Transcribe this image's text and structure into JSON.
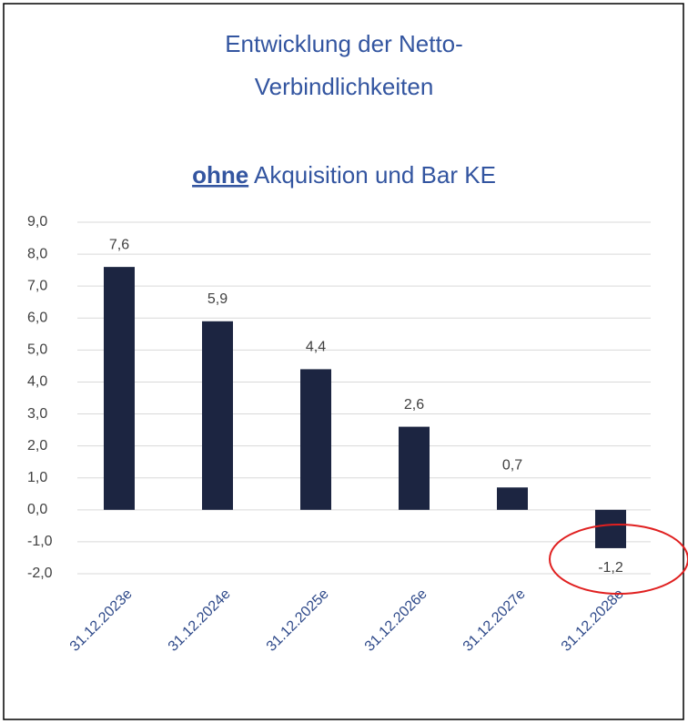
{
  "chart_data": {
    "type": "bar",
    "title": [
      "Entwicklung der Netto-",
      "Verbindlichkeiten"
    ],
    "subtitle": [
      "ohne",
      "Akquisition und Bar KE"
    ],
    "categories": [
      "31.12.2023e",
      "31.12.2024e",
      "31.12.2025e",
      "31.12.2026e",
      "31.12.2027e",
      "31.12.2028e"
    ],
    "values": [
      7.6,
      5.9,
      4.4,
      2.6,
      0.7,
      -1.2
    ],
    "value_labels": [
      "7,6",
      "5,9",
      "4,4",
      "2,6",
      "0,7",
      "-1,2"
    ],
    "color": "#1c2541",
    "ylim": [
      -2,
      9
    ],
    "yticks": [
      {
        "value": -2,
        "label": "-2,0"
      },
      {
        "value": -1,
        "label": "-1,0"
      },
      {
        "value": 0,
        "label": "0,0"
      },
      {
        "value": 1,
        "label": "1,0"
      },
      {
        "value": 2,
        "label": "2,0"
      },
      {
        "value": 3,
        "label": "3,0"
      },
      {
        "value": 4,
        "label": "4,0"
      },
      {
        "value": 5,
        "label": "5,0"
      },
      {
        "value": 6,
        "label": "6,0"
      },
      {
        "value": 7,
        "label": "7,0"
      },
      {
        "value": 8,
        "label": "8,0"
      },
      {
        "value": 9,
        "label": "9,0"
      }
    ],
    "grid": true
  }
}
